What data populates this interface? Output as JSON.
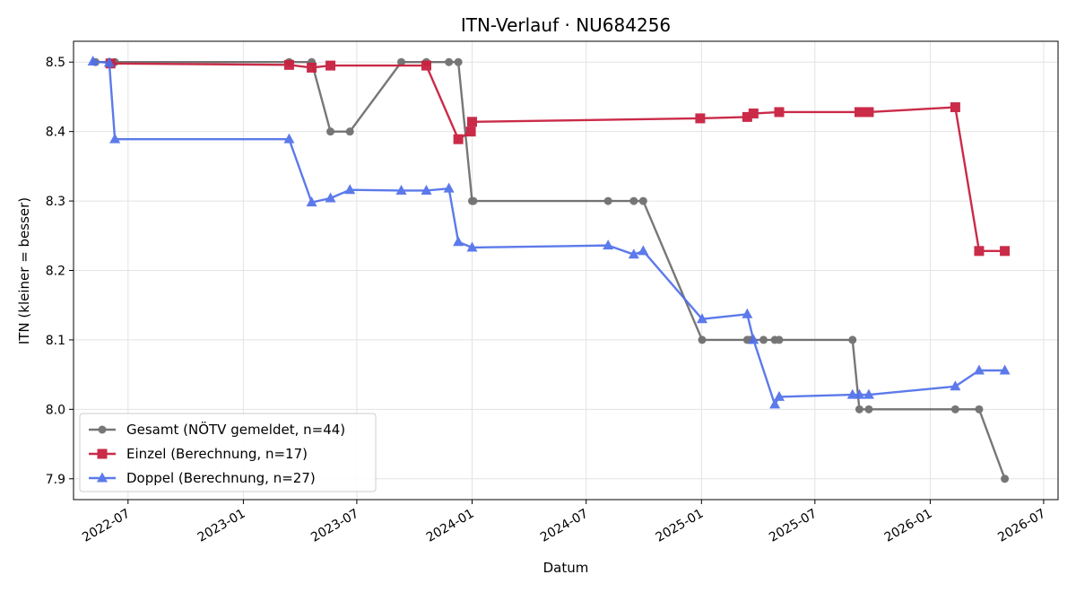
{
  "chart_data": {
    "type": "line",
    "title": "ITN-Verlauf · NU684256",
    "xlabel": "Datum",
    "ylabel": "ITN  (kleiner = besser)",
    "xlim": [
      "2022-04-05",
      "2026-07-24"
    ],
    "ylim": [
      7.87,
      8.53
    ],
    "grid": true,
    "legend_position": "lower-left",
    "x_ticks": [
      "2022-07",
      "2023-01",
      "2023-07",
      "2024-01",
      "2024-07",
      "2025-01",
      "2025-07",
      "2026-01",
      "2026-07"
    ],
    "y_ticks": [
      "7.9",
      "8.0",
      "8.1",
      "8.2",
      "8.3",
      "8.4",
      "8.5"
    ],
    "series": [
      {
        "name": "Gesamt (NÖTV gemeldet, n=44)",
        "color": "#444444",
        "marker": "circle",
        "points": [
          [
            "2022-05-10",
            8.5
          ],
          [
            "2022-06-01",
            8.5
          ],
          [
            "2022-06-10",
            8.5
          ],
          [
            "2023-03-15",
            8.5
          ],
          [
            "2023-04-20",
            8.5
          ],
          [
            "2023-05-20",
            8.4
          ],
          [
            "2023-06-20",
            8.4
          ],
          [
            "2023-09-10",
            8.5
          ],
          [
            "2023-10-20",
            8.5
          ],
          [
            "2023-11-25",
            8.5
          ],
          [
            "2023-12-10",
            8.5
          ],
          [
            "2024-01-01",
            8.3
          ],
          [
            "2024-01-03",
            8.3
          ],
          [
            "2024-08-05",
            8.3
          ],
          [
            "2024-09-15",
            8.3
          ],
          [
            "2024-09-30",
            8.3
          ],
          [
            "2025-01-02",
            8.1
          ],
          [
            "2025-03-15",
            8.1
          ],
          [
            "2025-03-20",
            8.1
          ],
          [
            "2025-04-10",
            8.1
          ],
          [
            "2025-04-28",
            8.1
          ],
          [
            "2025-05-05",
            8.1
          ],
          [
            "2025-08-30",
            8.1
          ],
          [
            "2025-09-10",
            8.0
          ],
          [
            "2025-09-25",
            8.0
          ],
          [
            "2026-02-10",
            8.0
          ],
          [
            "2026-03-20",
            8.0
          ],
          [
            "2026-04-30",
            7.9
          ]
        ]
      },
      {
        "name": "Einzel (Berechnung, n=17)",
        "color": "#c8203f",
        "marker": "square",
        "points": [
          [
            "2022-06-03",
            8.498
          ],
          [
            "2023-03-15",
            8.496
          ],
          [
            "2023-04-20",
            8.492
          ],
          [
            "2023-05-20",
            8.495
          ],
          [
            "2023-10-20",
            8.495
          ],
          [
            "2023-12-10",
            8.389
          ],
          [
            "2023-12-30",
            8.4
          ],
          [
            "2024-01-01",
            8.414
          ],
          [
            "2024-12-30",
            8.419
          ],
          [
            "2025-03-15",
            8.421
          ],
          [
            "2025-03-25",
            8.426
          ],
          [
            "2025-05-05",
            8.428
          ],
          [
            "2025-09-10",
            8.428
          ],
          [
            "2025-09-25",
            8.428
          ],
          [
            "2026-02-10",
            8.435
          ],
          [
            "2026-03-20",
            8.228
          ],
          [
            "2026-04-30",
            8.228
          ]
        ]
      },
      {
        "name": "Doppel (Berechnung, n=27)",
        "color": "#4f6fea",
        "marker": "triangle",
        "points": [
          [
            "2022-05-06",
            8.501
          ],
          [
            "2022-06-01",
            8.499
          ],
          [
            "2022-06-10",
            8.389
          ],
          [
            "2023-03-15",
            8.389
          ],
          [
            "2023-04-20",
            8.298
          ],
          [
            "2023-05-20",
            8.304
          ],
          [
            "2023-06-20",
            8.316
          ],
          [
            "2023-09-10",
            8.315
          ],
          [
            "2023-10-20",
            8.315
          ],
          [
            "2023-11-25",
            8.318
          ],
          [
            "2023-12-10",
            8.241
          ],
          [
            "2024-01-01",
            8.233
          ],
          [
            "2024-08-05",
            8.236
          ],
          [
            "2024-09-15",
            8.223
          ],
          [
            "2024-09-30",
            8.228
          ],
          [
            "2025-01-02",
            8.13
          ],
          [
            "2025-03-15",
            8.137
          ],
          [
            "2025-03-25",
            8.1
          ],
          [
            "2025-04-28",
            8.007
          ],
          [
            "2025-05-05",
            8.018
          ],
          [
            "2025-08-30",
            8.021
          ],
          [
            "2025-09-10",
            8.021
          ],
          [
            "2025-09-25",
            8.021
          ],
          [
            "2026-02-10",
            8.033
          ],
          [
            "2026-03-20",
            8.056
          ],
          [
            "2026-04-30",
            8.056
          ]
        ]
      }
    ]
  }
}
